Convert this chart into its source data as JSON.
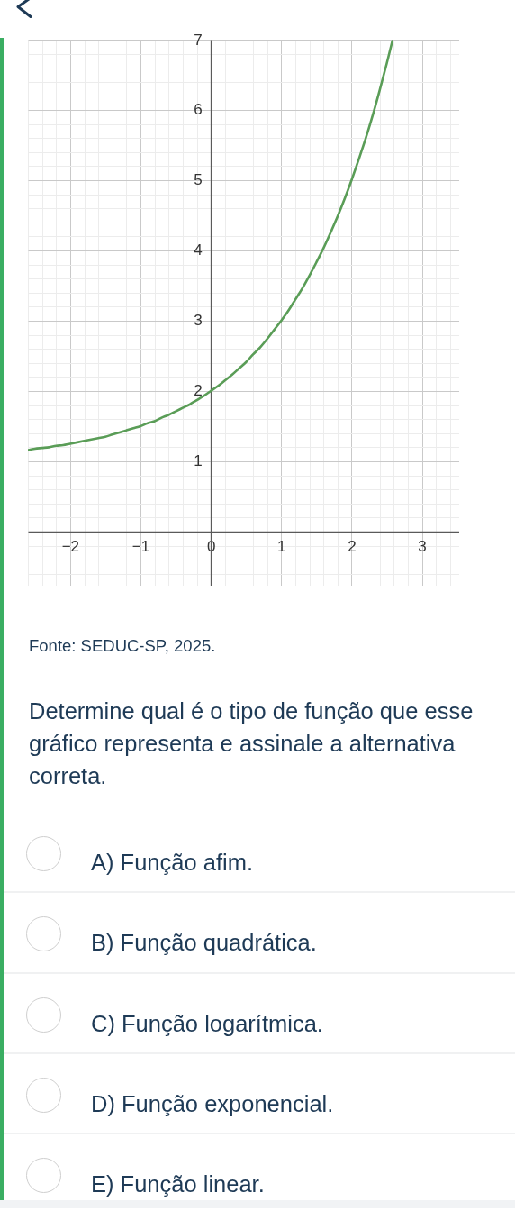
{
  "chart_data": {
    "type": "line",
    "x": [
      -2.6,
      -2.5,
      -2.4,
      -2.3,
      -2.2,
      -2.1,
      -2,
      -1.9,
      -1.8,
      -1.7,
      -1.6,
      -1.5,
      -1.4,
      -1.3,
      -1.2,
      -1.1,
      -1,
      -0.9,
      -0.8,
      -0.7,
      -0.6,
      -0.5,
      -0.4,
      -0.3,
      -0.2,
      -0.1,
      0,
      0.1,
      0.2,
      0.3,
      0.4,
      0.5,
      0.6,
      0.7,
      0.8,
      0.9,
      1,
      1.1,
      1.2,
      1.3,
      1.4,
      1.5,
      1.6,
      1.7,
      1.8,
      1.9,
      2,
      2.1,
      2.2,
      2.3,
      2.4,
      2.5,
      2.58
    ],
    "values": [
      1.16,
      1.18,
      1.19,
      1.2,
      1.22,
      1.23,
      1.25,
      1.27,
      1.29,
      1.31,
      1.33,
      1.35,
      1.38,
      1.41,
      1.44,
      1.47,
      1.5,
      1.54,
      1.57,
      1.62,
      1.66,
      1.71,
      1.76,
      1.81,
      1.87,
      1.93,
      2,
      2.07,
      2.15,
      2.23,
      2.32,
      2.41,
      2.52,
      2.62,
      2.74,
      2.87,
      3,
      3.14,
      3.3,
      3.46,
      3.64,
      3.83,
      4.03,
      4.25,
      4.48,
      4.73,
      5,
      5.29,
      5.59,
      5.92,
      6.28,
      6.66,
      6.98
    ],
    "color": "#5a9d57",
    "xlim": [
      -2.6,
      3.53
    ],
    "ylim": [
      -0.77,
      7
    ],
    "xticks": [
      {
        "value": -2.6,
        "label": null
      },
      {
        "value": -2.4,
        "label": null
      },
      {
        "value": -2.2,
        "label": null
      },
      {
        "value": -2,
        "label": "−2"
      },
      {
        "value": -1.8,
        "label": null
      },
      {
        "value": -1.6,
        "label": null
      },
      {
        "value": -1.4,
        "label": null
      },
      {
        "value": -1.2,
        "label": null
      },
      {
        "value": -1,
        "label": "−1"
      },
      {
        "value": -0.8,
        "label": null
      },
      {
        "value": -0.6,
        "label": null
      },
      {
        "value": -0.4,
        "label": null
      },
      {
        "value": -0.2,
        "label": null
      },
      0,
      {
        "value": 0.2,
        "label": null
      },
      {
        "value": 0.4,
        "label": null
      },
      {
        "value": 0.6,
        "label": null
      },
      {
        "value": 0.8,
        "label": null
      },
      1,
      {
        "value": 1.2,
        "label": null
      },
      {
        "value": 1.4,
        "label": null
      },
      {
        "value": 1.6,
        "label": null
      },
      {
        "value": 1.8,
        "label": null
      },
      2,
      {
        "value": 2.2,
        "label": null
      },
      {
        "value": 2.4,
        "label": null
      },
      {
        "value": 2.6,
        "label": null
      },
      {
        "value": 2.8,
        "label": null
      },
      3,
      {
        "value": 3.2,
        "label": null
      },
      {
        "value": 3.4,
        "label": null
      }
    ],
    "yticks": [
      {
        "value": -0.6,
        "label": null
      },
      {
        "value": -0.4,
        "label": null
      },
      {
        "value": -0.2,
        "label": null
      },
      {
        "value": 0,
        "label": null
      },
      {
        "value": 0.2,
        "label": null
      },
      {
        "value": 0.4,
        "label": null
      },
      {
        "value": 0.6,
        "label": null
      },
      {
        "value": 0.8,
        "label": null
      },
      1,
      {
        "value": 1.2,
        "label": null
      },
      {
        "value": 1.4,
        "label": null
      },
      {
        "value": 1.6,
        "label": null
      },
      {
        "value": 1.8,
        "label": null
      },
      2,
      {
        "value": 2.2,
        "label": null
      },
      {
        "value": 2.4,
        "label": null
      },
      {
        "value": 2.6,
        "label": null
      },
      {
        "value": 2.8,
        "label": null
      },
      3,
      {
        "value": 3.2,
        "label": null
      },
      {
        "value": 3.4,
        "label": null
      },
      {
        "value": 3.6,
        "label": null
      },
      {
        "value": 3.8,
        "label": null
      },
      4,
      {
        "value": 4.2,
        "label": null
      },
      {
        "value": 4.4,
        "label": null
      },
      {
        "value": 4.6,
        "label": null
      },
      {
        "value": 4.8,
        "label": null
      },
      5,
      {
        "value": 5.2,
        "label": null
      },
      {
        "value": 5.4,
        "label": null
      },
      {
        "value": 5.6,
        "label": null
      },
      {
        "value": 5.8,
        "label": null
      },
      6,
      {
        "value": 6.2,
        "label": null
      },
      {
        "value": 6.4,
        "label": null
      },
      {
        "value": 6.6,
        "label": null
      },
      {
        "value": 6.8,
        "label": null
      },
      7
    ],
    "grid": true,
    "annotations": [
      "Fonte: SEDUC-SP, 2025.",
      "Determine qual é o tipo de função que esse gráfico representa e assinale a alternativa correta.",
      "A) Função afim.",
      "B) Função quadrática.",
      "C) Função logarítmica.",
      "D) Função exponencial.",
      "E) Função linear."
    ]
  }
}
